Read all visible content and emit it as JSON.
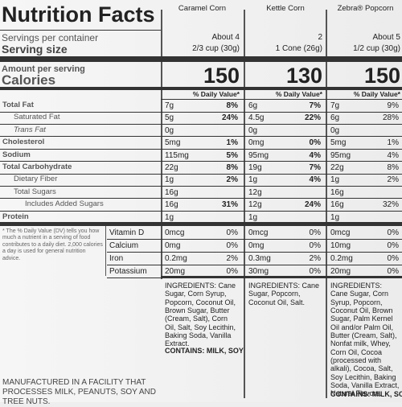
{
  "title": "Nutrition Facts",
  "products": [
    "Caramel Corn",
    "Kettle Corn",
    "Zebra® Popcorn"
  ],
  "servings": {
    "label": "Servings per container",
    "values": [
      "About 4",
      "2",
      "About 5"
    ]
  },
  "serving_size": {
    "label": "Serving size",
    "values": [
      "2/3 cup (30g)",
      "1 Cone (26g)",
      "1/2 cup (30g)"
    ]
  },
  "amount_per_serving": "Amount per serving",
  "calories": {
    "label": "Calories",
    "values": [
      150,
      130,
      150
    ]
  },
  "dv_header": "% Daily Value*",
  "nutrients": [
    {
      "label": "Total Fat",
      "bold": true,
      "indent": 0,
      "amounts": [
        "7g",
        "6g",
        "7g"
      ],
      "dv": [
        "8%",
        "7%",
        "9%"
      ]
    },
    {
      "label": "Saturated Fat",
      "bold": false,
      "indent": 1,
      "amounts": [
        "5g",
        "4.5g",
        "6g"
      ],
      "dv": [
        "24%",
        "22%",
        "28%"
      ]
    },
    {
      "label": "Trans Fat",
      "bold": false,
      "indent": 1,
      "italic": true,
      "amounts": [
        "0g",
        "0g",
        "0g"
      ]
    },
    {
      "label": "Cholesterol",
      "bold": true,
      "indent": 0,
      "amounts": [
        "5mg",
        "0mg",
        "5mg"
      ],
      "dv": [
        "1%",
        "0%",
        "1%"
      ]
    },
    {
      "label": "Sodium",
      "bold": true,
      "indent": 0,
      "amounts": [
        "115mg",
        "95mg",
        "95mg"
      ],
      "dv": [
        "5%",
        "4%",
        "4%"
      ]
    },
    {
      "label": "Total Carbohydrate",
      "bold": true,
      "indent": 0,
      "amounts": [
        "22g",
        "19g",
        "22g"
      ],
      "dv": [
        "8%",
        "7%",
        "8%"
      ]
    },
    {
      "label": "Dietary Fiber",
      "bold": false,
      "indent": 1,
      "amounts": [
        "1g",
        "1g",
        "1g"
      ],
      "dv": [
        "2%",
        "4%",
        "2%"
      ]
    },
    {
      "label": "Total Sugars",
      "bold": false,
      "indent": 1,
      "amounts": [
        "16g",
        "12g",
        "16g"
      ]
    },
    {
      "label": "Includes Added Sugars",
      "bold": false,
      "indent": 2,
      "amounts": [
        "16g",
        "12g",
        "16g"
      ],
      "dv": [
        "31%",
        "24%",
        "32%"
      ]
    },
    {
      "label": "Protein",
      "bold": true,
      "indent": 0,
      "amounts": [
        "1g",
        "1g",
        "1g"
      ]
    }
  ],
  "footnote": "* The % Daily Value (DV) tells you how much a nutrient in a serving of food contributes to a daily diet. 2,000 calories a day is used for general nutrition advice.",
  "vitamins": [
    {
      "label": "Vitamin D",
      "amounts": [
        "0mcg",
        "0mcg",
        "0mcg"
      ],
      "dv": [
        "0%",
        "0%",
        "0%"
      ]
    },
    {
      "label": "Calcium",
      "amounts": [
        "0mg",
        "0mg",
        "10mg"
      ],
      "dv": [
        "0%",
        "0%",
        "0%"
      ]
    },
    {
      "label": "Iron",
      "amounts": [
        "0.2mg",
        "0.3mg",
        "0.2mg"
      ],
      "dv": [
        "2%",
        "2%",
        "0%"
      ]
    },
    {
      "label": "Potassium",
      "amounts": [
        "20mg",
        "30mg",
        "20mg"
      ],
      "dv": [
        "0%",
        "0%",
        "0%"
      ]
    }
  ],
  "ingredients": [
    "INGREDIENTS: Cane Sugar, Corn Syrup, Popcorn, Coconut Oil, Brown Sugar, Butter (Cream, Salt), Corn Oil, Salt, Soy Lecithin, Baking Soda, Vanilla Extract.",
    "INGREDIENTS: Cane Sugar, Popcorn, Coconut Oil, Salt.",
    "INGREDIENTS: Cane Sugar, Corn Syrup, Popcorn, Coconut Oil, Brown Sugar, Palm Kernel Oil and/or Palm Oil, Butter (Cream, Salt), Nonfat milk, Whey, Corn Oil, Cocoa (processed with alkali), Cocoa, Salt, Soy Lecithin, Baking Soda, Vanilla Extract, Natural Flavors."
  ],
  "contains": [
    "CONTAINS: MILK, SOY",
    "CONTAINS: MILK, SOY"
  ],
  "contains_col": [
    0,
    2
  ],
  "facility": "MANUFACTURED IN A FACILITY THAT PROCESSES MILK, PEANUTS, SOY AND TREE NUTS."
}
